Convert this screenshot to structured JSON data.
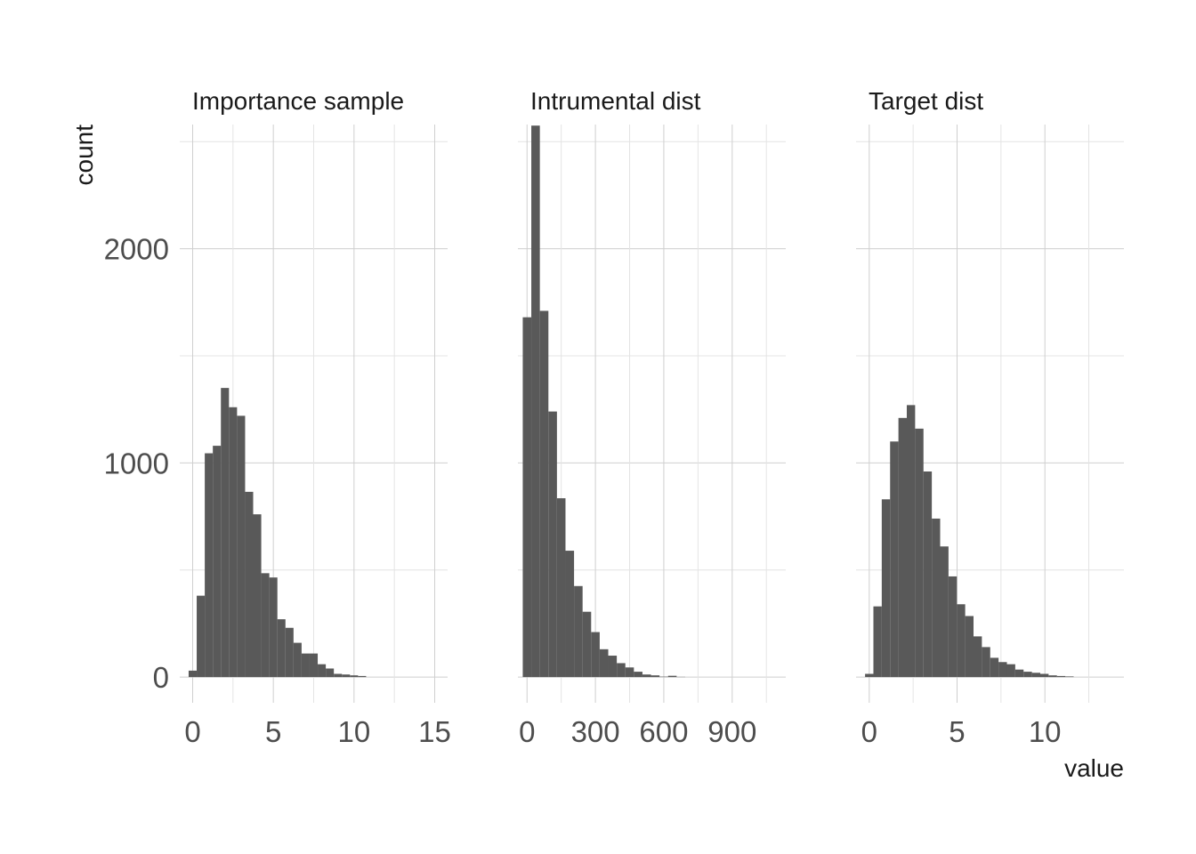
{
  "chart_data": {
    "type": "bar",
    "chart_kind": "faceted histogram",
    "xlabel": "value",
    "ylabel": "count",
    "ylim": [
      -120,
      2580
    ],
    "y_ticks": [
      0,
      1000,
      2000
    ],
    "y_tick_labels": [
      "0",
      "1000",
      "2000"
    ],
    "grid": true,
    "bar_color": "#595959",
    "panels": [
      {
        "title": "Importance sample",
        "x_ticks": [
          0,
          5,
          10,
          15
        ],
        "x_tick_labels": [
          "0",
          "5",
          "10",
          "15"
        ],
        "xlim": [
          -0.8,
          15.8
        ],
        "bin_width": 0.5,
        "bins": [
          {
            "x": 0.0,
            "count": 30
          },
          {
            "x": 0.5,
            "count": 380
          },
          {
            "x": 1.0,
            "count": 1045
          },
          {
            "x": 1.5,
            "count": 1080
          },
          {
            "x": 2.0,
            "count": 1350
          },
          {
            "x": 2.5,
            "count": 1260
          },
          {
            "x": 3.0,
            "count": 1220
          },
          {
            "x": 3.5,
            "count": 865
          },
          {
            "x": 4.0,
            "count": 760
          },
          {
            "x": 4.5,
            "count": 485
          },
          {
            "x": 5.0,
            "count": 465
          },
          {
            "x": 5.5,
            "count": 270
          },
          {
            "x": 6.0,
            "count": 230
          },
          {
            "x": 6.5,
            "count": 160
          },
          {
            "x": 7.0,
            "count": 110
          },
          {
            "x": 7.5,
            "count": 110
          },
          {
            "x": 8.0,
            "count": 60
          },
          {
            "x": 8.5,
            "count": 40
          },
          {
            "x": 9.0,
            "count": 15
          },
          {
            "x": 9.5,
            "count": 12
          },
          {
            "x": 10.0,
            "count": 8
          },
          {
            "x": 10.5,
            "count": 5
          }
        ]
      },
      {
        "title": "Intrumental dist",
        "x_ticks": [
          0,
          300,
          600,
          900
        ],
        "x_tick_labels": [
          "0",
          "300",
          "600",
          "900"
        ],
        "xlim": [
          -40,
          1135
        ],
        "bin_width": 37.5,
        "bins": [
          {
            "x": 0,
            "count": 1680
          },
          {
            "x": 37.5,
            "count": 2575
          },
          {
            "x": 75,
            "count": 1710
          },
          {
            "x": 112.5,
            "count": 1240
          },
          {
            "x": 150,
            "count": 835
          },
          {
            "x": 187.5,
            "count": 590
          },
          {
            "x": 225,
            "count": 425
          },
          {
            "x": 262.5,
            "count": 305
          },
          {
            "x": 300,
            "count": 210
          },
          {
            "x": 337.5,
            "count": 130
          },
          {
            "x": 375,
            "count": 100
          },
          {
            "x": 412.5,
            "count": 65
          },
          {
            "x": 450,
            "count": 45
          },
          {
            "x": 487.5,
            "count": 25
          },
          {
            "x": 525,
            "count": 12
          },
          {
            "x": 562.5,
            "count": 8
          },
          {
            "x": 600,
            "count": 2
          },
          {
            "x": 637.5,
            "count": 6
          },
          {
            "x": 675,
            "count": 1
          }
        ]
      },
      {
        "title": "Target dist",
        "x_ticks": [
          0,
          5,
          10
        ],
        "x_tick_labels": [
          "0",
          "5",
          "10"
        ],
        "xlim": [
          -0.75,
          14.5
        ],
        "bin_width": 0.475,
        "bins": [
          {
            "x": 0.0,
            "count": 15
          },
          {
            "x": 0.475,
            "count": 330
          },
          {
            "x": 0.95,
            "count": 830
          },
          {
            "x": 1.425,
            "count": 1100
          },
          {
            "x": 1.9,
            "count": 1210
          },
          {
            "x": 2.375,
            "count": 1270
          },
          {
            "x": 2.85,
            "count": 1160
          },
          {
            "x": 3.325,
            "count": 960
          },
          {
            "x": 3.8,
            "count": 740
          },
          {
            "x": 4.275,
            "count": 610
          },
          {
            "x": 4.75,
            "count": 470
          },
          {
            "x": 5.225,
            "count": 340
          },
          {
            "x": 5.7,
            "count": 285
          },
          {
            "x": 6.175,
            "count": 190
          },
          {
            "x": 6.65,
            "count": 140
          },
          {
            "x": 7.125,
            "count": 90
          },
          {
            "x": 7.6,
            "count": 70
          },
          {
            "x": 8.075,
            "count": 60
          },
          {
            "x": 8.55,
            "count": 35
          },
          {
            "x": 9.025,
            "count": 25
          },
          {
            "x": 9.5,
            "count": 20
          },
          {
            "x": 9.975,
            "count": 15
          },
          {
            "x": 10.45,
            "count": 8
          },
          {
            "x": 10.925,
            "count": 5
          },
          {
            "x": 11.4,
            "count": 3
          }
        ]
      }
    ]
  }
}
